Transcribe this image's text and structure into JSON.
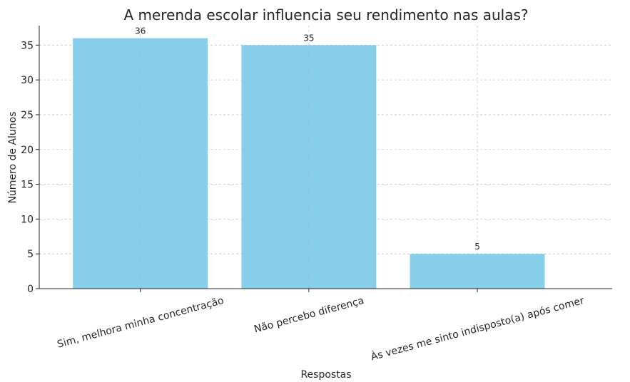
{
  "chart_data": {
    "type": "bar",
    "title": "A merenda escolar influencia seu rendimento nas aulas?",
    "x_label": "Respostas",
    "y_label": "Número de Alunos",
    "categories": [
      "Sim, melhora minha concentração",
      "Não percebo diferença",
      "Às vezes me sinto indisposto(a) após comer"
    ],
    "values": [
      36,
      35,
      5
    ],
    "color": "#87ceeb",
    "ylim": [
      0,
      37.8
    ],
    "yticks": [
      0,
      5,
      10,
      15,
      20,
      25,
      30,
      35
    ],
    "grid": true
  }
}
